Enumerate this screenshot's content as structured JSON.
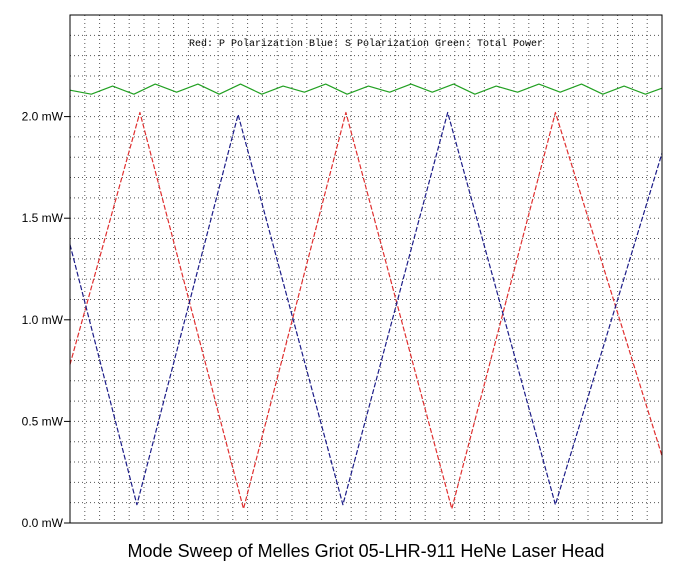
{
  "chart_data": {
    "type": "line",
    "title": "Mode Sweep of Melles Griot 05-LHR-911 HeNe Laser Head",
    "legend_text": "Red: P Polarization  Blue: S Polarization  Green: Total Power",
    "legend_position": "top",
    "xlabel": "",
    "ylabel": "",
    "grid": true,
    "xlim": [
      0,
      100
    ],
    "ylim": [
      0,
      2.5
    ],
    "y_ticks": [
      0,
      0.5,
      1.0,
      1.5,
      2.0
    ],
    "y_tick_labels": [
      "0.0 mW",
      "0.5 mW",
      "1.0 mW",
      "1.5 mW",
      "2.0 mW"
    ],
    "series": [
      {
        "name": "P Polarization",
        "color": "#e03030",
        "style": "dashed",
        "x": [
          0,
          11.8,
          29.3,
          46.6,
          64.5,
          82.0,
          100
        ],
        "y": [
          0.78,
          2.02,
          0.07,
          2.02,
          0.07,
          2.02,
          0.33
        ]
      },
      {
        "name": "S Polarization",
        "color": "#1c1c88",
        "style": "dashed",
        "x": [
          0,
          11.3,
          28.4,
          46.1,
          63.8,
          82.0,
          100
        ],
        "y": [
          1.37,
          0.09,
          2.01,
          0.09,
          2.02,
          0.09,
          1.82
        ]
      },
      {
        "name": "Total Power",
        "color": "#22a022",
        "style": "solid",
        "x": [
          0,
          3.6,
          7.2,
          10.8,
          14.4,
          18.0,
          21.6,
          25.2,
          28.8,
          32.4,
          36.0,
          39.6,
          43.2,
          46.8,
          50.4,
          54.0,
          57.6,
          61.2,
          64.8,
          68.4,
          72.0,
          75.6,
          79.2,
          82.8,
          86.4,
          90.0,
          93.6,
          97.2,
          100
        ],
        "y": [
          2.13,
          2.11,
          2.15,
          2.11,
          2.16,
          2.12,
          2.16,
          2.11,
          2.16,
          2.11,
          2.15,
          2.12,
          2.16,
          2.11,
          2.15,
          2.12,
          2.16,
          2.12,
          2.16,
          2.11,
          2.15,
          2.12,
          2.16,
          2.12,
          2.16,
          2.11,
          2.15,
          2.11,
          2.14
        ]
      }
    ]
  }
}
